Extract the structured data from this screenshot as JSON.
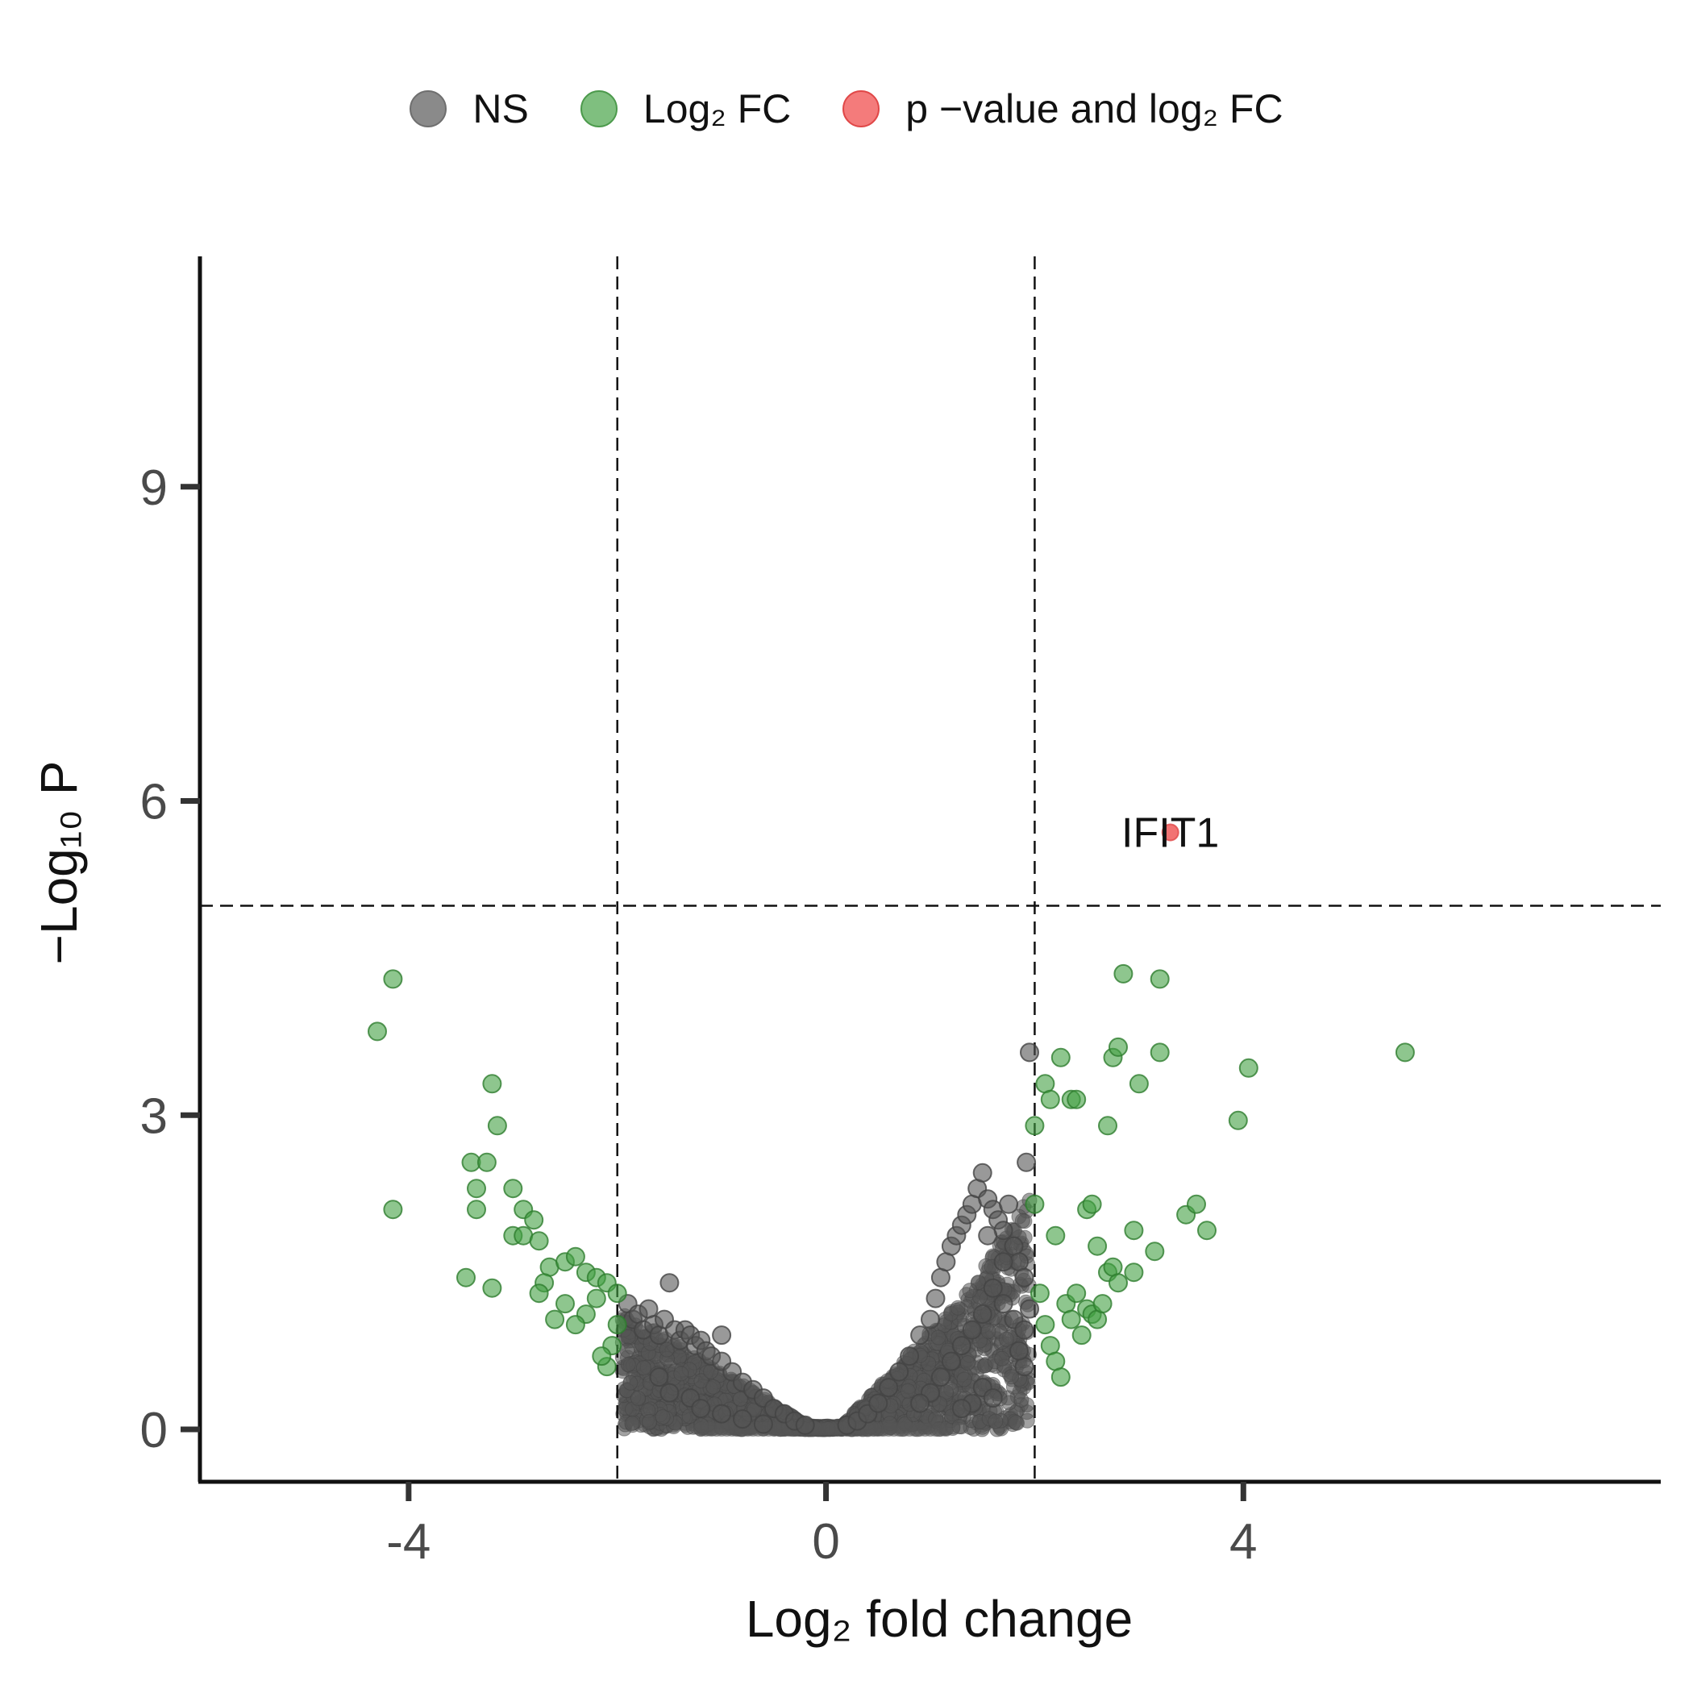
{
  "legend": [
    {
      "label": "NS",
      "color": "#8a8a8a",
      "border": "#6f6f6f"
    },
    {
      "label": "Log₂ FC",
      "color": "#7fbf7f",
      "border": "#4c9a4c"
    },
    {
      "label": "p −value and log₂ FC",
      "color": "#f47b7b",
      "border": "#e04848"
    }
  ],
  "chart_data": {
    "type": "scatter",
    "xlabel": "Log₂ fold change",
    "ylabel": "−Log₁₀ P",
    "xlim": [
      -6.0,
      8.0
    ],
    "ylim": [
      -0.5,
      11.2
    ],
    "x_ticks": [
      -4,
      0,
      4
    ],
    "y_ticks": [
      0,
      3,
      6,
      9
    ],
    "x_tick_labels": [
      "-4",
      "0",
      "4"
    ],
    "y_tick_labels": [
      "0",
      "3",
      "6",
      "9"
    ],
    "cutoffs": {
      "log2fc": [
        -2,
        2
      ],
      "neg_log10_p": 5
    },
    "grid": false,
    "legend_position": "top",
    "series": [
      {
        "name": "NS",
        "color": "#555555",
        "points": [
          [
            -1.9,
            1.2
          ],
          [
            -1.85,
            1.05
          ],
          [
            -1.8,
            1.1
          ],
          [
            -1.75,
            0.95
          ],
          [
            -1.7,
            1.15
          ],
          [
            -1.65,
            1.0
          ],
          [
            -1.6,
            0.9
          ],
          [
            -1.55,
            1.05
          ],
          [
            -1.5,
            1.4
          ],
          [
            -1.45,
            0.95
          ],
          [
            -1.4,
            0.85
          ],
          [
            -1.35,
            0.95
          ],
          [
            -1.3,
            0.9
          ],
          [
            -1.25,
            0.8
          ],
          [
            -1.2,
            0.85
          ],
          [
            -1.15,
            0.75
          ],
          [
            -1.1,
            0.7
          ],
          [
            -1.0,
            0.9
          ],
          [
            -1.0,
            0.65
          ],
          [
            -0.9,
            0.55
          ],
          [
            -0.8,
            0.45
          ],
          [
            -0.7,
            0.38
          ],
          [
            -0.6,
            0.3
          ],
          [
            -0.5,
            0.2
          ],
          [
            -0.4,
            0.15
          ],
          [
            -0.3,
            0.08
          ],
          [
            -0.2,
            0.04
          ],
          [
            -1.6,
            0.5
          ],
          [
            -1.5,
            0.35
          ],
          [
            -1.3,
            0.3
          ],
          [
            -1.2,
            0.2
          ],
          [
            -1.0,
            0.15
          ],
          [
            -0.8,
            0.1
          ],
          [
            -0.6,
            0.05
          ],
          [
            0.2,
            0.04
          ],
          [
            0.3,
            0.08
          ],
          [
            0.4,
            0.15
          ],
          [
            0.5,
            0.25
          ],
          [
            0.6,
            0.4
          ],
          [
            0.7,
            0.55
          ],
          [
            0.8,
            0.7
          ],
          [
            0.9,
            0.9
          ],
          [
            1.0,
            1.05
          ],
          [
            1.05,
            1.25
          ],
          [
            1.1,
            1.45
          ],
          [
            1.15,
            1.6
          ],
          [
            1.2,
            1.75
          ],
          [
            1.25,
            1.85
          ],
          [
            1.3,
            1.95
          ],
          [
            1.35,
            2.05
          ],
          [
            1.4,
            2.15
          ],
          [
            1.45,
            2.3
          ],
          [
            1.5,
            2.45
          ],
          [
            1.55,
            2.2
          ],
          [
            1.6,
            2.1
          ],
          [
            1.65,
            2.0
          ],
          [
            1.7,
            1.9
          ],
          [
            1.75,
            2.15
          ],
          [
            1.8,
            1.75
          ],
          [
            1.85,
            1.6
          ],
          [
            1.9,
            1.45
          ],
          [
            1.92,
            2.55
          ],
          [
            1.95,
            3.6
          ],
          [
            1.7,
            1.2
          ],
          [
            1.8,
            1.05
          ],
          [
            1.9,
            0.95
          ],
          [
            1.6,
            1.35
          ],
          [
            1.5,
            1.1
          ],
          [
            1.4,
            0.95
          ],
          [
            1.3,
            0.8
          ],
          [
            1.2,
            0.65
          ],
          [
            1.1,
            0.5
          ],
          [
            1.0,
            0.35
          ],
          [
            0.9,
            0.25
          ],
          [
            1.5,
            0.4
          ],
          [
            1.6,
            0.3
          ],
          [
            1.4,
            0.25
          ],
          [
            1.3,
            0.2
          ],
          [
            1.9,
            0.6
          ],
          [
            1.85,
            0.75
          ],
          [
            1.95,
            1.15
          ],
          [
            1.7,
            1.6
          ],
          [
            1.55,
            1.85
          ]
        ]
      },
      {
        "name": "Log₂ FC",
        "color": "#2e8b2e",
        "points": [
          [
            -4.15,
            4.3
          ],
          [
            -4.3,
            3.8
          ],
          [
            -4.15,
            2.1
          ],
          [
            -3.2,
            3.3
          ],
          [
            -3.15,
            2.9
          ],
          [
            -3.4,
            2.55
          ],
          [
            -3.25,
            2.55
          ],
          [
            -3.35,
            2.3
          ],
          [
            -3.35,
            2.1
          ],
          [
            -3.0,
            2.3
          ],
          [
            -2.9,
            2.1
          ],
          [
            -2.8,
            2.0
          ],
          [
            -3.0,
            1.85
          ],
          [
            -2.9,
            1.85
          ],
          [
            -2.75,
            1.8
          ],
          [
            -2.65,
            1.55
          ],
          [
            -2.5,
            1.6
          ],
          [
            -2.4,
            1.65
          ],
          [
            -2.3,
            1.5
          ],
          [
            -2.2,
            1.45
          ],
          [
            -2.1,
            1.4
          ],
          [
            -2.0,
            1.3
          ],
          [
            -2.0,
            1.0
          ],
          [
            -2.05,
            0.8
          ],
          [
            -2.1,
            0.6
          ],
          [
            -2.2,
            1.25
          ],
          [
            -2.3,
            1.1
          ],
          [
            -2.4,
            1.0
          ],
          [
            -2.5,
            1.2
          ],
          [
            -2.6,
            1.05
          ],
          [
            -2.7,
            1.4
          ],
          [
            -2.75,
            1.3
          ],
          [
            -3.45,
            1.45
          ],
          [
            -3.2,
            1.35
          ],
          [
            -2.15,
            0.7
          ],
          [
            2.05,
            1.3
          ],
          [
            2.1,
            1.0
          ],
          [
            2.15,
            0.8
          ],
          [
            2.2,
            0.65
          ],
          [
            2.25,
            0.5
          ],
          [
            2.3,
            1.2
          ],
          [
            2.35,
            1.05
          ],
          [
            2.4,
            1.3
          ],
          [
            2.45,
            0.9
          ],
          [
            2.5,
            1.15
          ],
          [
            2.55,
            1.1
          ],
          [
            2.6,
            1.05
          ],
          [
            2.65,
            1.2
          ],
          [
            2.7,
            1.5
          ],
          [
            2.75,
            1.55
          ],
          [
            2.8,
            1.4
          ],
          [
            2.95,
            1.9
          ],
          [
            2.95,
            1.5
          ],
          [
            3.15,
            1.7
          ],
          [
            2.0,
            2.15
          ],
          [
            2.0,
            2.9
          ],
          [
            2.1,
            3.3
          ],
          [
            2.15,
            3.15
          ],
          [
            2.25,
            3.55
          ],
          [
            2.35,
            3.15
          ],
          [
            2.4,
            3.15
          ],
          [
            2.5,
            2.1
          ],
          [
            2.55,
            2.15
          ],
          [
            2.6,
            1.75
          ],
          [
            2.2,
            1.85
          ],
          [
            2.7,
            2.9
          ],
          [
            2.75,
            3.55
          ],
          [
            2.8,
            3.65
          ],
          [
            2.85,
            4.35
          ],
          [
            3.0,
            3.3
          ],
          [
            3.2,
            4.3
          ],
          [
            3.2,
            3.6
          ],
          [
            3.45,
            2.05
          ],
          [
            3.55,
            2.15
          ],
          [
            3.65,
            1.9
          ],
          [
            3.95,
            2.95
          ],
          [
            4.05,
            3.45
          ],
          [
            5.55,
            3.6
          ]
        ]
      },
      {
        "name": "p −value and log₂ FC",
        "color": "#e8383b",
        "points": [
          [
            3.3,
            5.7
          ]
        ],
        "labels": [
          "IFIT1"
        ]
      }
    ]
  }
}
